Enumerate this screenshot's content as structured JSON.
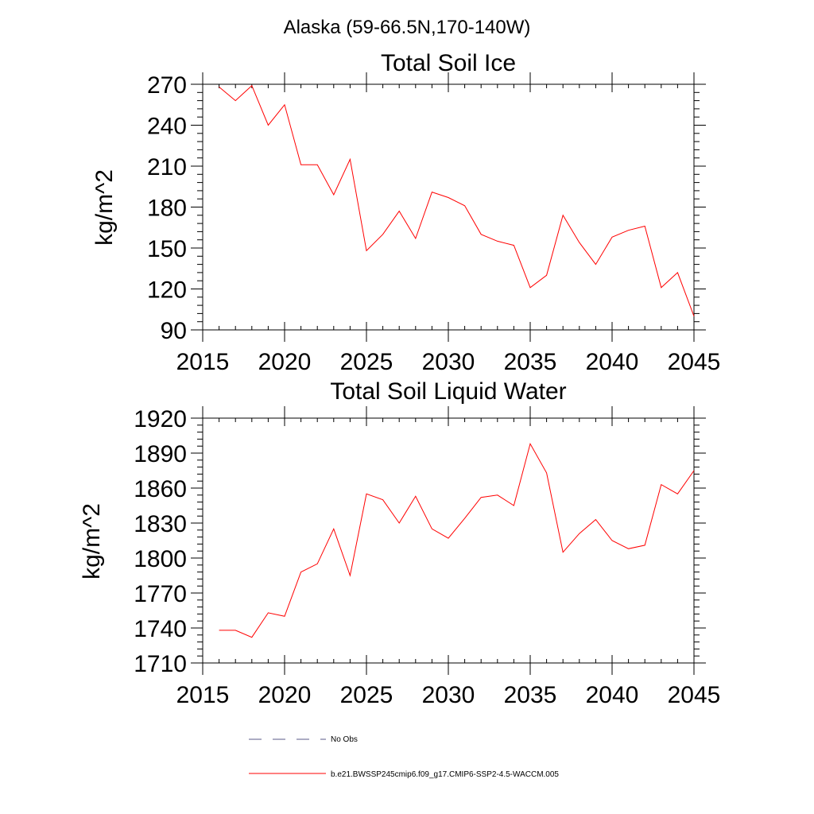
{
  "figure_title": "Alaska (59-66.5N,170-140W)",
  "colors": {
    "model_line": "#ff0000",
    "obs_line": "#5a5a8a",
    "axis": "#000000"
  },
  "legend": {
    "obs_label": "No Obs",
    "model_label": "b.e21.BWSSP245cmip6.f09_g17.CMIP6-SSP2-4.5-WACCM.005"
  },
  "chart_data": [
    {
      "type": "line",
      "title": "Total Soil Ice",
      "xlabel": "",
      "ylabel": "kg/m^2",
      "xlim": [
        2015,
        2045
      ],
      "ylim": [
        90,
        270
      ],
      "xticks": [
        2015,
        2020,
        2025,
        2030,
        2035,
        2040,
        2045
      ],
      "yticks": [
        90,
        120,
        150,
        180,
        210,
        240,
        270
      ],
      "grid": false,
      "series": [
        {
          "name": "b.e21.BWSSP245cmip6.f09_g17.CMIP6-SSP2-4.5-WACCM.005",
          "x": [
            2016,
            2017,
            2018,
            2019,
            2020,
            2021,
            2022,
            2023,
            2024,
            2025,
            2026,
            2027,
            2028,
            2029,
            2030,
            2031,
            2032,
            2033,
            2034,
            2035,
            2036,
            2037,
            2038,
            2039,
            2040,
            2041,
            2042,
            2043,
            2044,
            2045
          ],
          "values": [
            268,
            258,
            269,
            240,
            255,
            211,
            211,
            189,
            215,
            148,
            160,
            177,
            157,
            191,
            187,
            181,
            160,
            155,
            152,
            121,
            130,
            174,
            154,
            138,
            158,
            163,
            166,
            121,
            132,
            100
          ]
        }
      ]
    },
    {
      "type": "line",
      "title": "Total Soil Liquid Water",
      "xlabel": "",
      "ylabel": "kg/m^2",
      "xlim": [
        2015,
        2045
      ],
      "ylim": [
        1710,
        1920
      ],
      "xticks": [
        2015,
        2020,
        2025,
        2030,
        2035,
        2040,
        2045
      ],
      "yticks": [
        1710,
        1740,
        1770,
        1800,
        1830,
        1860,
        1890,
        1920
      ],
      "grid": false,
      "series": [
        {
          "name": "b.e21.BWSSP245cmip6.f09_g17.CMIP6-SSP2-4.5-WACCM.005",
          "x": [
            2016,
            2017,
            2018,
            2019,
            2020,
            2021,
            2022,
            2023,
            2024,
            2025,
            2026,
            2027,
            2028,
            2029,
            2030,
            2031,
            2032,
            2033,
            2034,
            2035,
            2036,
            2037,
            2038,
            2039,
            2040,
            2041,
            2042,
            2043,
            2044,
            2045
          ],
          "values": [
            1738,
            1738,
            1732,
            1753,
            1750,
            1788,
            1795,
            1825,
            1785,
            1855,
            1850,
            1830,
            1853,
            1825,
            1817,
            1834,
            1852,
            1854,
            1845,
            1898,
            1873,
            1805,
            1821,
            1833,
            1815,
            1808,
            1811,
            1863,
            1855,
            1875
          ]
        }
      ]
    }
  ]
}
